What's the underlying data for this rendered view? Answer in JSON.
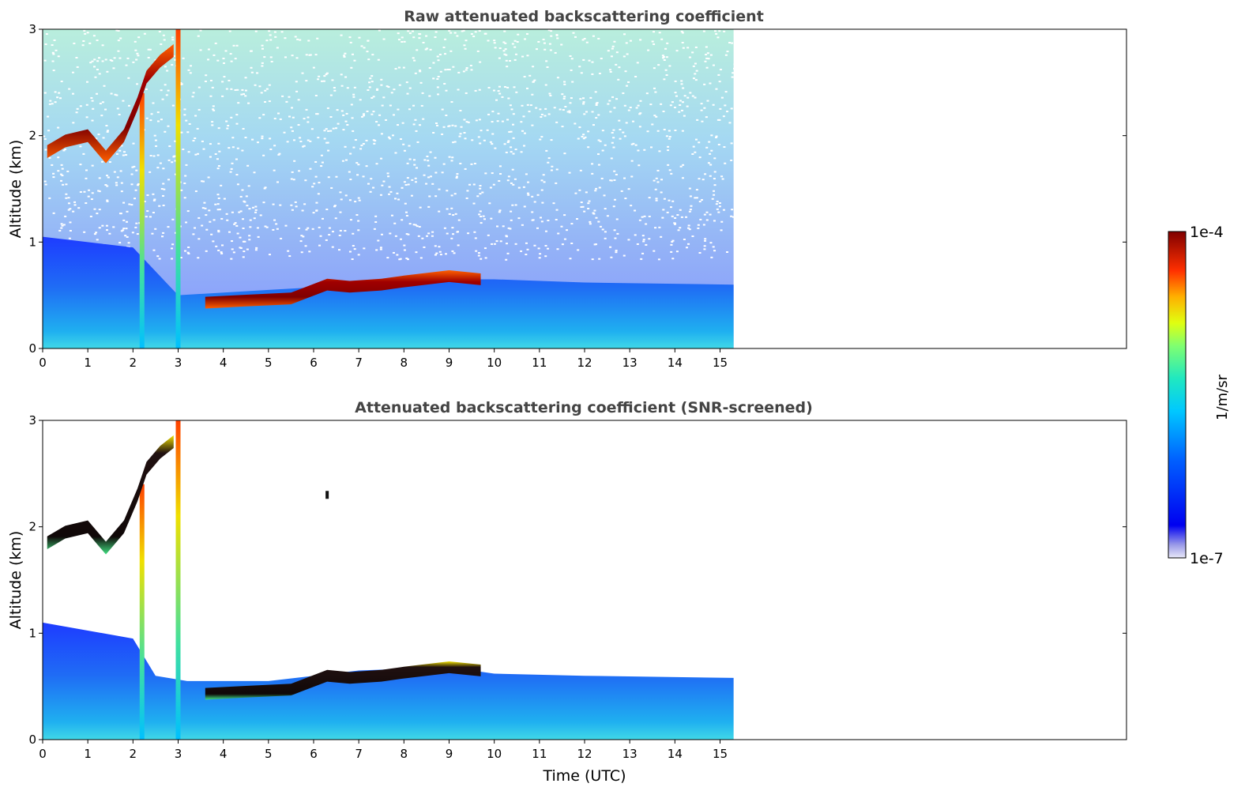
{
  "figure": {
    "colorbar": {
      "max_label": "1e-4",
      "min_label": "1e-7",
      "unit_label": "1/m/sr",
      "scale": "log",
      "range": [
        1e-07,
        0.0001
      ],
      "colormap": "jet"
    },
    "xlabel": "Time (UTC)"
  },
  "chart_data": [
    {
      "type": "heatmap",
      "title": "Raw attenuated backscattering coefficient",
      "xlabel": "",
      "ylabel": "Altitude (km)",
      "xlim": [
        0,
        24
      ],
      "ylim": [
        0,
        3
      ],
      "x_ticks": [
        "0",
        "1",
        "2",
        "3",
        "4",
        "5",
        "6",
        "7",
        "8",
        "9",
        "10",
        "11",
        "12",
        "13",
        "14",
        "15"
      ],
      "y_ticks": [
        "0",
        "1",
        "2",
        "3"
      ],
      "data_extent_time_hours": [
        0,
        15.3
      ],
      "features": {
        "cloud_layer_upper": [
          [
            0.1,
            1.85
          ],
          [
            0.5,
            1.95
          ],
          [
            1.0,
            2.0
          ],
          [
            1.4,
            1.8
          ],
          [
            1.8,
            2.0
          ],
          [
            2.1,
            2.3
          ],
          [
            2.3,
            2.55
          ],
          [
            2.6,
            2.7
          ],
          [
            2.9,
            2.8
          ]
        ],
        "cloud_layer_lower": [
          [
            3.6,
            0.43
          ],
          [
            4.5,
            0.45
          ],
          [
            5.5,
            0.47
          ],
          [
            6.3,
            0.6
          ],
          [
            6.8,
            0.58
          ],
          [
            7.5,
            0.6
          ],
          [
            8.0,
            0.63
          ],
          [
            9.0,
            0.68
          ],
          [
            9.7,
            0.65
          ]
        ],
        "boundary_layer_top": [
          [
            0,
            1.05
          ],
          [
            2,
            0.95
          ],
          [
            3,
            0.5
          ],
          [
            5,
            0.55
          ],
          [
            7,
            0.6
          ],
          [
            9,
            0.65
          ],
          [
            10,
            0.65
          ],
          [
            12,
            0.62
          ],
          [
            15.3,
            0.6
          ]
        ],
        "precipitation_columns_hours": [
          2.2,
          3.0
        ]
      }
    },
    {
      "type": "heatmap",
      "title": "Attenuated backscattering coefficient (SNR-screened)",
      "xlabel": "Time (UTC)",
      "ylabel": "Altitude (km)",
      "xlim": [
        0,
        24
      ],
      "ylim": [
        0,
        3
      ],
      "x_ticks": [
        "0",
        "1",
        "2",
        "3",
        "4",
        "5",
        "6",
        "7",
        "8",
        "9",
        "10",
        "11",
        "12",
        "13",
        "14",
        "15"
      ],
      "y_ticks": [
        "0",
        "1",
        "2",
        "3"
      ],
      "data_extent_time_hours": [
        0,
        15.3
      ],
      "features": {
        "cloud_layer_upper": [
          [
            0.1,
            1.85
          ],
          [
            0.5,
            1.95
          ],
          [
            1.0,
            2.0
          ],
          [
            1.4,
            1.8
          ],
          [
            1.8,
            2.0
          ],
          [
            2.1,
            2.3
          ],
          [
            2.3,
            2.55
          ],
          [
            2.6,
            2.7
          ],
          [
            2.9,
            2.8
          ]
        ],
        "cloud_layer_lower": [
          [
            3.6,
            0.43
          ],
          [
            4.5,
            0.45
          ],
          [
            5.5,
            0.47
          ],
          [
            6.3,
            0.6
          ],
          [
            6.8,
            0.58
          ],
          [
            7.5,
            0.6
          ],
          [
            8.0,
            0.63
          ],
          [
            9.0,
            0.68
          ],
          [
            9.7,
            0.65
          ]
        ],
        "boundary_layer_top": [
          [
            0,
            1.1
          ],
          [
            2,
            0.95
          ],
          [
            2.5,
            0.6
          ],
          [
            3.2,
            0.55
          ],
          [
            5,
            0.55
          ],
          [
            7,
            0.65
          ],
          [
            9,
            0.68
          ],
          [
            10,
            0.62
          ],
          [
            12,
            0.6
          ],
          [
            15.3,
            0.58
          ]
        ],
        "precipitation_columns_hours": [
          2.2,
          3.0
        ],
        "isolated_echo": [
          6.3,
          2.3
        ]
      }
    }
  ]
}
